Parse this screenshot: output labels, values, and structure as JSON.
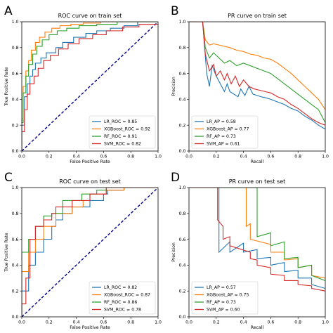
{
  "colors": {
    "LR": "#1f77b4",
    "XGBoost": "#ff7f0e",
    "RF": "#2ca02c",
    "SVM": "#d62728",
    "diagonal": "#00008b",
    "legend_frame": "#cccccc"
  },
  "chart_data": [
    {
      "panel_letter": "A",
      "type": "line",
      "title": "ROC curve on train set",
      "xlabel": "False Positive Rate",
      "ylabel": "True Positive Rate",
      "xlim": [
        0,
        1
      ],
      "ylim": [
        0,
        1
      ],
      "xticks": [
        "0.0",
        "0.2",
        "0.4",
        "0.6",
        "0.8",
        "1.0"
      ],
      "yticks": [
        "0.0",
        "0.2",
        "0.4",
        "0.6",
        "0.8",
        "1.0"
      ],
      "grid": false,
      "legend_position": "lower-right",
      "diagonal": true,
      "series": [
        {
          "name": "LR_ROC = 0.85",
          "color_key": "LR",
          "x": [
            0,
            0,
            0.02,
            0.02,
            0.04,
            0.04,
            0.06,
            0.06,
            0.08,
            0.08,
            0.1,
            0.1,
            0.14,
            0.14,
            0.18,
            0.18,
            0.25,
            0.25,
            0.3,
            0.3,
            0.38,
            0.38,
            0.47,
            0.47,
            0.55,
            0.55,
            0.65,
            0.65,
            0.75,
            0.75,
            0.85,
            0.85,
            1
          ],
          "y": [
            0,
            0.2,
            0.2,
            0.42,
            0.42,
            0.52,
            0.52,
            0.58,
            0.58,
            0.63,
            0.63,
            0.68,
            0.68,
            0.72,
            0.72,
            0.76,
            0.76,
            0.8,
            0.8,
            0.84,
            0.84,
            0.88,
            0.88,
            0.91,
            0.91,
            0.93,
            0.93,
            0.95,
            0.95,
            0.97,
            0.97,
            1,
            1
          ]
        },
        {
          "name": "XGBoost_ROC = 0.92",
          "color_key": "XGBoost",
          "x": [
            0,
            0,
            0.01,
            0.01,
            0.03,
            0.03,
            0.05,
            0.05,
            0.07,
            0.07,
            0.1,
            0.1,
            0.13,
            0.13,
            0.17,
            0.17,
            0.22,
            0.22,
            0.28,
            0.28,
            0.36,
            0.36,
            0.45,
            0.45,
            0.58,
            0.58,
            1
          ],
          "y": [
            0,
            0.25,
            0.25,
            0.5,
            0.5,
            0.62,
            0.62,
            0.7,
            0.7,
            0.78,
            0.78,
            0.84,
            0.84,
            0.88,
            0.88,
            0.92,
            0.92,
            0.95,
            0.95,
            0.97,
            0.97,
            0.98,
            0.98,
            0.99,
            0.99,
            1,
            1
          ]
        },
        {
          "name": "RF_ROC = 0.91",
          "color_key": "RF",
          "x": [
            0,
            0,
            0.01,
            0.01,
            0.03,
            0.03,
            0.05,
            0.05,
            0.08,
            0.08,
            0.11,
            0.11,
            0.15,
            0.15,
            0.2,
            0.2,
            0.26,
            0.26,
            0.33,
            0.33,
            0.42,
            0.42,
            0.55,
            0.55,
            0.7,
            0.7,
            1
          ],
          "y": [
            0,
            0.22,
            0.22,
            0.45,
            0.45,
            0.58,
            0.58,
            0.67,
            0.67,
            0.75,
            0.75,
            0.81,
            0.81,
            0.86,
            0.86,
            0.9,
            0.9,
            0.93,
            0.93,
            0.95,
            0.95,
            0.97,
            0.97,
            0.98,
            0.98,
            1,
            1
          ]
        },
        {
          "name": "SVM_ROC = 0.82",
          "color_key": "SVM",
          "x": [
            0,
            0,
            0.02,
            0.02,
            0.04,
            0.04,
            0.06,
            0.06,
            0.09,
            0.09,
            0.12,
            0.12,
            0.16,
            0.16,
            0.21,
            0.21,
            0.27,
            0.27,
            0.34,
            0.34,
            0.42,
            0.42,
            0.52,
            0.52,
            0.62,
            0.62,
            0.74,
            0.74,
            0.86,
            0.86,
            1
          ],
          "y": [
            0,
            0.15,
            0.15,
            0.32,
            0.32,
            0.44,
            0.44,
            0.52,
            0.52,
            0.58,
            0.58,
            0.64,
            0.64,
            0.7,
            0.7,
            0.74,
            0.74,
            0.79,
            0.79,
            0.83,
            0.83,
            0.87,
            0.87,
            0.9,
            0.9,
            0.93,
            0.93,
            0.96,
            0.96,
            0.98,
            0.98
          ]
        }
      ]
    },
    {
      "panel_letter": "B",
      "type": "line",
      "title": "PR curve on train set",
      "xlabel": "Recall",
      "ylabel": "Precision",
      "xlim": [
        0,
        1
      ],
      "ylim": [
        0,
        1
      ],
      "xticks": [
        "0.0",
        "0.2",
        "0.4",
        "0.6",
        "0.8",
        "1.0"
      ],
      "yticks": [
        "0.0",
        "0.2",
        "0.4",
        "0.6",
        "0.8",
        "1.0"
      ],
      "grid": false,
      "legend_position": "lower-left",
      "diagonal": false,
      "series": [
        {
          "name": "LR_AP = 0.58",
          "color_key": "LR",
          "x": [
            0,
            0.05,
            0.1,
            0.13,
            0.15,
            0.17,
            0.2,
            0.23,
            0.26,
            0.28,
            0.3,
            0.33,
            0.36,
            0.38,
            0.41,
            0.44,
            0.47,
            0.5,
            0.53,
            0.57,
            0.6,
            0.65,
            0.7,
            0.75,
            0.8,
            0.85,
            0.9,
            0.95,
            1
          ],
          "y": [
            1,
            1,
            1,
            0.6,
            0.5,
            0.66,
            0.58,
            0.52,
            0.46,
            0.52,
            0.46,
            0.44,
            0.42,
            0.48,
            0.43,
            0.5,
            0.44,
            0.43,
            0.42,
            0.41,
            0.4,
            0.38,
            0.36,
            0.33,
            0.31,
            0.27,
            0.24,
            0.2,
            0.17
          ]
        },
        {
          "name": "XGBoost_AP = 0.77",
          "color_key": "XGBoost",
          "x": [
            0,
            0.05,
            0.1,
            0.12,
            0.15,
            0.18,
            0.22,
            0.26,
            0.3,
            0.35,
            0.4,
            0.45,
            0.5,
            0.55,
            0.6,
            0.65,
            0.7,
            0.75,
            0.8,
            0.85,
            0.9,
            0.95,
            1
          ],
          "y": [
            1,
            1,
            1,
            0.86,
            0.82,
            0.83,
            0.82,
            0.81,
            0.8,
            0.78,
            0.77,
            0.75,
            0.74,
            0.72,
            0.71,
            0.68,
            0.64,
            0.6,
            0.55,
            0.5,
            0.45,
            0.4,
            0.32
          ]
        },
        {
          "name": "RF_AP = 0.73",
          "color_key": "RF",
          "x": [
            0,
            0.05,
            0.1,
            0.12,
            0.15,
            0.18,
            0.22,
            0.26,
            0.3,
            0.35,
            0.4,
            0.45,
            0.5,
            0.55,
            0.6,
            0.65,
            0.7,
            0.75,
            0.8,
            0.85,
            0.9,
            0.95,
            1
          ],
          "y": [
            1,
            1,
            1,
            0.8,
            0.72,
            0.76,
            0.72,
            0.68,
            0.7,
            0.66,
            0.68,
            0.66,
            0.64,
            0.62,
            0.6,
            0.56,
            0.52,
            0.48,
            0.44,
            0.4,
            0.36,
            0.32,
            0.22
          ]
        },
        {
          "name": "SVM_AP = 0.61",
          "color_key": "SVM",
          "x": [
            0,
            0.05,
            0.1,
            0.12,
            0.15,
            0.18,
            0.2,
            0.23,
            0.26,
            0.28,
            0.31,
            0.34,
            0.37,
            0.4,
            0.44,
            0.48,
            0.52,
            0.56,
            0.6,
            0.65,
            0.7,
            0.75,
            0.8,
            0.85,
            0.9,
            0.95,
            1
          ],
          "y": [
            1,
            1,
            1,
            0.75,
            0.62,
            0.67,
            0.58,
            0.62,
            0.55,
            0.6,
            0.52,
            0.58,
            0.5,
            0.55,
            0.5,
            0.48,
            0.47,
            0.46,
            0.45,
            0.42,
            0.4,
            0.36,
            0.33,
            0.29,
            0.25,
            0.22,
            0.2
          ]
        }
      ]
    },
    {
      "panel_letter": "C",
      "type": "line",
      "title": "ROC curve on test set",
      "xlabel": "False Positive Rate",
      "ylabel": "True Positive Rate",
      "xlim": [
        0,
        1
      ],
      "ylim": [
        0,
        1
      ],
      "xticks": [
        "0.0",
        "0.2",
        "0.4",
        "0.6",
        "0.8",
        "1.0"
      ],
      "yticks": [
        "0.0",
        "0.2",
        "0.4",
        "0.6",
        "0.8",
        "1.0"
      ],
      "grid": false,
      "legend_position": "lower-right",
      "diagonal": true,
      "series": [
        {
          "name": "LR_ROC = 0.82",
          "color_key": "LR",
          "x": [
            0,
            0,
            0.05,
            0.05,
            0.1,
            0.1,
            0.16,
            0.16,
            0.22,
            0.22,
            0.25,
            0.25,
            0.3,
            0.3,
            0.37,
            0.37,
            0.5,
            0.5,
            0.6,
            0.6,
            0.63,
            0.63,
            0.75,
            0.75,
            1
          ],
          "y": [
            0,
            0.2,
            0.2,
            0.4,
            0.4,
            0.5,
            0.5,
            0.6,
            0.6,
            0.7,
            0.7,
            0.75,
            0.75,
            0.8,
            0.8,
            0.85,
            0.85,
            0.9,
            0.9,
            0.95,
            0.95,
            0.98,
            0.98,
            1,
            1
          ]
        },
        {
          "name": "XGBoost_ROC = 0.87",
          "color_key": "XGBoost",
          "x": [
            0,
            0,
            0.05,
            0.05,
            0.1,
            0.1,
            0.16,
            0.16,
            0.25,
            0.25,
            0.37,
            0.37,
            0.45,
            0.45,
            0.5,
            0.5,
            0.62,
            0.62,
            0.75,
            0.75,
            1
          ],
          "y": [
            0,
            0.35,
            0.35,
            0.5,
            0.5,
            0.6,
            0.6,
            0.7,
            0.7,
            0.8,
            0.8,
            0.85,
            0.85,
            0.9,
            0.9,
            0.95,
            0.95,
            0.98,
            0.98,
            1,
            1
          ]
        },
        {
          "name": "RF_ROC = 0.86",
          "color_key": "RF",
          "x": [
            0,
            0,
            0.05,
            0.05,
            0.1,
            0.1,
            0.16,
            0.16,
            0.22,
            0.22,
            0.3,
            0.3,
            0.44,
            0.44,
            0.5,
            0.5,
            0.55,
            0.55,
            0.62,
            0.62,
            0.75,
            0.75,
            1
          ],
          "y": [
            0,
            0.5,
            0.5,
            0.6,
            0.6,
            0.7,
            0.7,
            0.78,
            0.78,
            0.8,
            0.8,
            0.9,
            0.9,
            0.95,
            0.95,
            0.95,
            0.95,
            0.98,
            0.98,
            1,
            1,
            1,
            1
          ]
        },
        {
          "name": "SVM_ROC = 0.78",
          "color_key": "SVM",
          "x": [
            0,
            0,
            0.03,
            0.03,
            0.06,
            0.06,
            0.1,
            0.1,
            0.16,
            0.16,
            0.22,
            0.22,
            0.25,
            0.25,
            0.37,
            0.37,
            0.5,
            0.5,
            0.62,
            0.62,
            0.75,
            0.75,
            1
          ],
          "y": [
            0,
            0.1,
            0.1,
            0.3,
            0.3,
            0.6,
            0.6,
            0.7,
            0.7,
            0.75,
            0.75,
            0.8,
            0.8,
            0.85,
            0.85,
            0.9,
            0.9,
            0.95,
            0.95,
            1,
            1,
            1,
            1
          ]
        }
      ]
    },
    {
      "panel_letter": "D",
      "type": "line",
      "title": "PR curve on test set",
      "xlabel": "Recall",
      "ylabel": "Precision",
      "xlim": [
        0,
        1
      ],
      "ylim": [
        0,
        1
      ],
      "xticks": [
        "0.0",
        "0.2",
        "0.4",
        "0.6",
        "0.8",
        "1.0"
      ],
      "yticks": [
        "0.0",
        "0.2",
        "0.4",
        "0.6",
        "0.8",
        "1.0"
      ],
      "grid": false,
      "legend_position": "lower-left",
      "diagonal": false,
      "series": [
        {
          "name": "LR_AP = 0.57",
          "color_key": "LR",
          "x": [
            0,
            0.22,
            0.22,
            0.3,
            0.3,
            0.4,
            0.4,
            0.5,
            0.5,
            0.6,
            0.6,
            0.7,
            0.7,
            0.8,
            0.8,
            0.9,
            0.9,
            1
          ],
          "y": [
            1,
            1,
            0.5,
            0.58,
            0.5,
            0.57,
            0.5,
            0.52,
            0.45,
            0.46,
            0.4,
            0.42,
            0.35,
            0.36,
            0.3,
            0.3,
            0.25,
            0.22
          ]
        },
        {
          "name": "XGBoost_AP = 0.75",
          "color_key": "XGBoost",
          "x": [
            0,
            0.42,
            0.42,
            0.45,
            0.45,
            0.6,
            0.6,
            0.7,
            0.7,
            0.8,
            0.8,
            0.9,
            0.9,
            1
          ],
          "y": [
            1,
            1,
            0.7,
            0.72,
            0.6,
            0.56,
            0.5,
            0.5,
            0.44,
            0.45,
            0.38,
            0.4,
            0.32,
            0.3
          ]
        },
        {
          "name": "RF_AP = 0.73",
          "color_key": "RF",
          "x": [
            0,
            0.5,
            0.5,
            0.6,
            0.6,
            0.7,
            0.7,
            0.8,
            0.8,
            0.9,
            0.9,
            1
          ],
          "y": [
            1,
            1,
            0.62,
            0.65,
            0.55,
            0.58,
            0.45,
            0.46,
            0.38,
            0.4,
            0.32,
            0.28
          ]
        },
        {
          "name": "SVM_AP = 0.60",
          "color_key": "SVM",
          "x": [
            0,
            0.21,
            0.21,
            0.25,
            0.25,
            0.3,
            0.3,
            0.45,
            0.45,
            0.5,
            0.5,
            0.6,
            0.6,
            0.7,
            0.7,
            0.8,
            0.8,
            0.9,
            0.9,
            1
          ],
          "y": [
            1,
            1,
            0.75,
            0.7,
            0.6,
            0.62,
            0.55,
            0.5,
            0.45,
            0.44,
            0.4,
            0.38,
            0.33,
            0.32,
            0.28,
            0.28,
            0.25,
            0.24,
            0.22,
            0.2
          ]
        }
      ]
    }
  ]
}
